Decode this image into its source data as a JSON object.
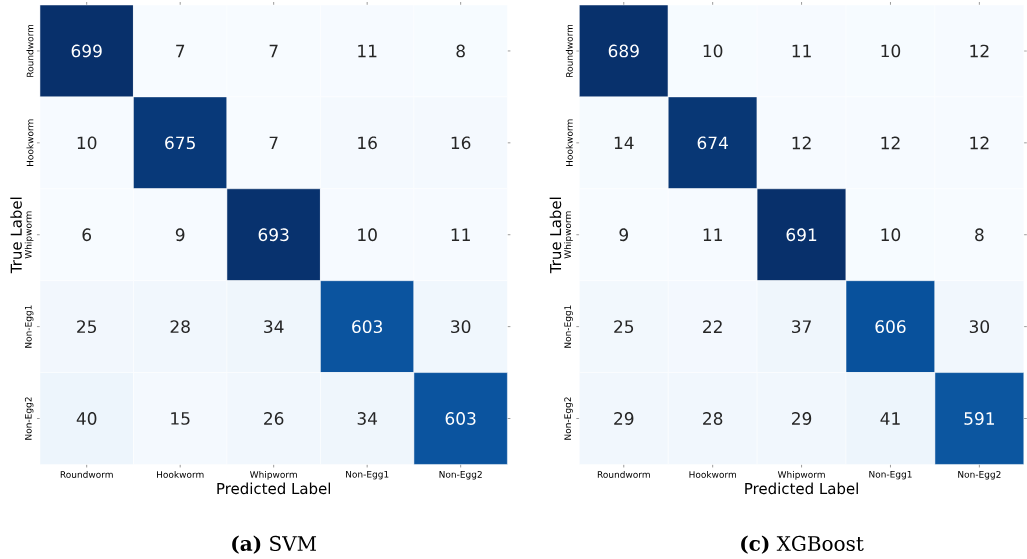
{
  "chart_data": [
    {
      "type": "heatmap",
      "data_labels": true,
      "title": "**(a)** SVM",
      "xlabel": "Predicted Label",
      "ylabel": "True Label",
      "categories": [
        "Roundworm",
        "Hookworm",
        "Whipworm",
        "Non-Egg1",
        "Non-Egg2"
      ],
      "y_categories": [
        "Roundworm",
        "Hookworm",
        "Whipworm",
        "Non-Egg1",
        "Non-Egg2"
      ],
      "cells": [
        [
          699,
          7,
          7,
          11,
          8
        ],
        [
          10,
          675,
          7,
          16,
          16
        ],
        [
          6,
          9,
          693,
          10,
          11
        ],
        [
          25,
          28,
          34,
          603,
          30
        ],
        [
          40,
          15,
          26,
          34,
          603
        ]
      ]
    },
    {
      "type": "heatmap",
      "data_labels": true,
      "title": "**(c)** XGBoost",
      "xlabel": "Predicted Label",
      "ylabel": "True Label",
      "categories": [
        "Roundworm",
        "Hookworm",
        "Whipworm",
        "Non-Egg1",
        "Non-Egg2"
      ],
      "y_categories": [
        "Roundworm",
        "Hookworm",
        "Whipworm",
        "Non-Egg1",
        "Non-Egg2"
      ],
      "cells": [
        [
          689,
          10,
          11,
          10,
          12
        ],
        [
          14,
          674,
          12,
          12,
          12
        ],
        [
          9,
          11,
          691,
          10,
          8
        ],
        [
          25,
          22,
          37,
          606,
          30
        ],
        [
          29,
          28,
          29,
          41,
          591
        ]
      ]
    }
  ]
}
